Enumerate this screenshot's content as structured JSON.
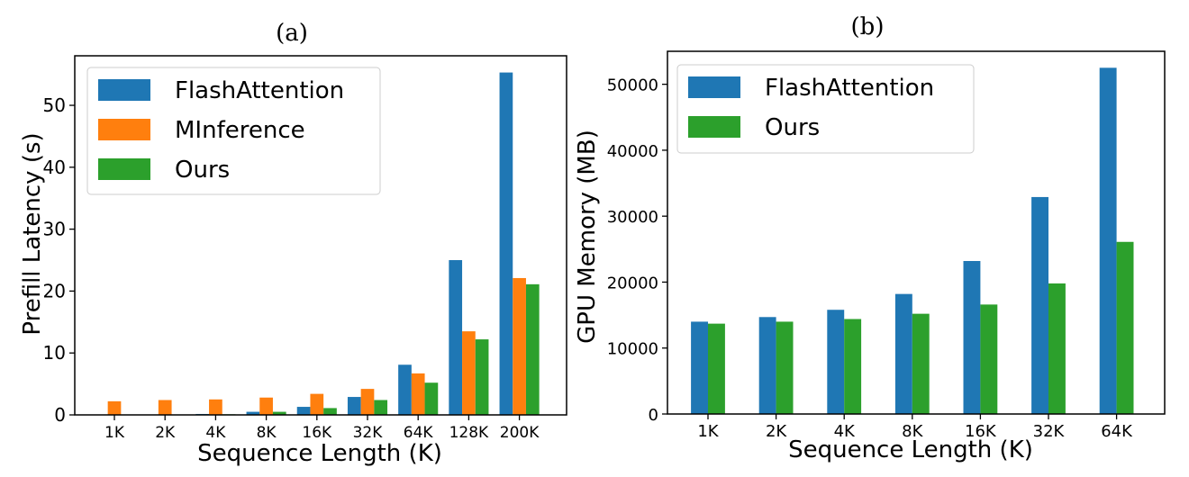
{
  "colors": {
    "FlashAttention": "#1f77b4",
    "MInference": "#ff7f0e",
    "Ours": "#2ca02c",
    "axis": "#000000",
    "legend_border": "#cccccc"
  },
  "chart_data": [
    {
      "type": "bar",
      "title": "(a)",
      "xlabel": "Sequence Length (K)",
      "ylabel": "Prefill Latency (s)",
      "categories": [
        "1K",
        "2K",
        "4K",
        "8K",
        "16K",
        "32K",
        "64K",
        "128K",
        "200K"
      ],
      "ylim": [
        0,
        58
      ],
      "yticks": [
        0,
        10,
        20,
        30,
        40,
        50
      ],
      "grid": false,
      "legend_position": "upper-left",
      "series": [
        {
          "name": "FlashAttention",
          "values": [
            0.02,
            0.05,
            0.15,
            0.5,
            1.3,
            2.9,
            8.1,
            25.0,
            55.3
          ]
        },
        {
          "name": "MInference",
          "values": [
            2.2,
            2.4,
            2.5,
            2.8,
            3.4,
            4.2,
            6.7,
            13.5,
            22.1
          ]
        },
        {
          "name": "Ours",
          "values": [
            0.02,
            0.04,
            0.1,
            0.5,
            1.1,
            2.4,
            5.2,
            12.2,
            21.1
          ]
        }
      ]
    },
    {
      "type": "bar",
      "title": "(b)",
      "xlabel": "Sequence Length (K)",
      "ylabel": "GPU Memory (MB)",
      "categories": [
        "1K",
        "2K",
        "4K",
        "8K",
        "16K",
        "32K",
        "64K"
      ],
      "ylim": [
        0,
        55000
      ],
      "yticks": [
        0,
        10000,
        20000,
        30000,
        40000,
        50000
      ],
      "grid": false,
      "legend_position": "upper-left",
      "series": [
        {
          "name": "FlashAttention",
          "values": [
            14000,
            14700,
            15800,
            18200,
            23200,
            32900,
            52500
          ]
        },
        {
          "name": "Ours",
          "values": [
            13700,
            14000,
            14400,
            15200,
            16600,
            19800,
            26100
          ]
        }
      ]
    }
  ]
}
